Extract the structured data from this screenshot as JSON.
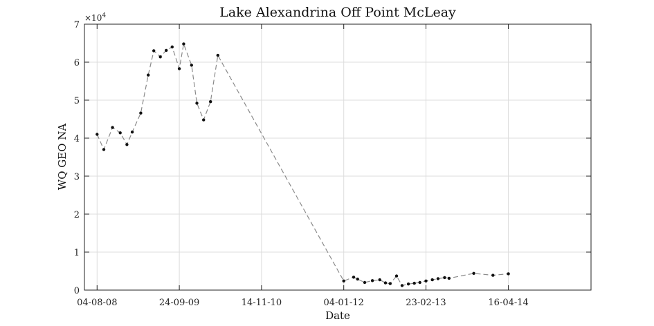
{
  "chart_data": {
    "type": "line",
    "title": "Lake Alexandrina Off Point McLeay",
    "xlabel": "Date",
    "ylabel": "WQ GEO NA",
    "y_exponent_label": "×10",
    "y_exponent_power": "4",
    "y_multiplier": 10000,
    "x_ticks": [
      "04-08-08",
      "24-09-09",
      "14-11-10",
      "04-01-12",
      "23-02-13",
      "16-04-14"
    ],
    "x_range": [
      "2008-06-01",
      "2015-06-08"
    ],
    "y_ticks": [
      "0",
      "1",
      "2",
      "3",
      "4",
      "5",
      "6",
      "7"
    ],
    "ylim": [
      0,
      70000
    ],
    "grid": true,
    "line_style": "dashed",
    "series": [
      {
        "points": [
          {
            "x": "2008-08-04",
            "y": 41000
          },
          {
            "x": "2008-09-07",
            "y": 37000
          },
          {
            "x": "2008-10-21",
            "y": 42800
          },
          {
            "x": "2008-11-29",
            "y": 41400
          },
          {
            "x": "2009-01-02",
            "y": 38300
          },
          {
            "x": "2009-01-29",
            "y": 41600
          },
          {
            "x": "2009-03-13",
            "y": 46600
          },
          {
            "x": "2009-04-20",
            "y": 56600
          },
          {
            "x": "2009-05-18",
            "y": 63000
          },
          {
            "x": "2009-06-20",
            "y": 61400
          },
          {
            "x": "2009-07-20",
            "y": 63100
          },
          {
            "x": "2009-08-19",
            "y": 64000
          },
          {
            "x": "2009-09-24",
            "y": 58300
          },
          {
            "x": "2009-10-16",
            "y": 64800
          },
          {
            "x": "2009-11-25",
            "y": 59200
          },
          {
            "x": "2009-12-22",
            "y": 49200
          },
          {
            "x": "2010-01-25",
            "y": 44800
          },
          {
            "x": "2010-03-01",
            "y": 49600
          },
          {
            "x": "2010-04-07",
            "y": 61800
          },
          {
            "x": "2012-01-04",
            "y": 2400
          },
          {
            "x": "2012-02-23",
            "y": 3400
          },
          {
            "x": "2012-03-14",
            "y": 2900
          },
          {
            "x": "2012-04-19",
            "y": 2000
          },
          {
            "x": "2012-05-28",
            "y": 2500
          },
          {
            "x": "2012-07-04",
            "y": 2700
          },
          {
            "x": "2012-08-02",
            "y": 1900
          },
          {
            "x": "2012-08-26",
            "y": 1700
          },
          {
            "x": "2012-09-27",
            "y": 3700
          },
          {
            "x": "2012-10-25",
            "y": 1200
          },
          {
            "x": "2012-11-26",
            "y": 1600
          },
          {
            "x": "2012-12-26",
            "y": 1800
          },
          {
            "x": "2013-01-23",
            "y": 2000
          },
          {
            "x": "2013-02-23",
            "y": 2400
          },
          {
            "x": "2013-03-27",
            "y": 2700
          },
          {
            "x": "2013-04-25",
            "y": 3000
          },
          {
            "x": "2013-05-28",
            "y": 3300
          },
          {
            "x": "2013-06-20",
            "y": 3100
          },
          {
            "x": "2013-10-23",
            "y": 4400
          },
          {
            "x": "2014-01-28",
            "y": 3900
          },
          {
            "x": "2014-04-16",
            "y": 4300
          }
        ]
      }
    ]
  }
}
